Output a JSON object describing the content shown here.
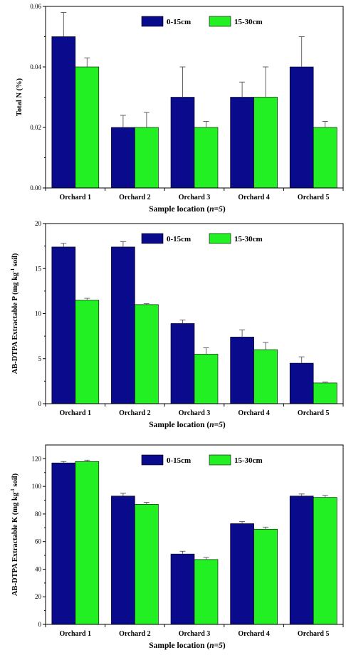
{
  "colors": {
    "series1": "#0a0a8c",
    "series2": "#22f022",
    "axis": "#000000",
    "error": "#555555"
  },
  "chart_data": [
    {
      "type": "bar",
      "categories": [
        "Orchard 1",
        "Orchard 2",
        "Orchard 3",
        "Orchard 4",
        "Orchard 5"
      ],
      "series": [
        {
          "name": "0-15cm",
          "values": [
            0.05,
            0.02,
            0.03,
            0.03,
            0.04
          ],
          "errors": [
            0.008,
            0.004,
            0.01,
            0.005,
            0.01
          ]
        },
        {
          "name": "15-30cm",
          "values": [
            0.04,
            0.02,
            0.02,
            0.03,
            0.02
          ],
          "errors": [
            0.003,
            0.005,
            0.002,
            0.01,
            0.002
          ]
        }
      ],
      "xlabel_pre": "Sample location (",
      "xlabel_em": "n=5",
      "xlabel_post": ")",
      "ylabel": "Total N (%)",
      "ylim": [
        0,
        0.06
      ],
      "yticks": [
        "0.00",
        "0.02",
        "0.04",
        "0.06"
      ],
      "legend": "top-right"
    },
    {
      "type": "bar",
      "categories": [
        "Orchard 1",
        "Orchard 2",
        "Orchard 3",
        "Orchard 4",
        "Orchard 5"
      ],
      "series": [
        {
          "name": "0-15cm",
          "values": [
            17.4,
            17.4,
            8.9,
            7.4,
            4.5
          ],
          "errors": [
            0.4,
            0.6,
            0.4,
            0.8,
            0.7
          ]
        },
        {
          "name": "15-30cm",
          "values": [
            11.5,
            11.0,
            5.5,
            6.0,
            2.3
          ],
          "errors": [
            0.2,
            0.1,
            0.7,
            0.8,
            0.1
          ]
        }
      ],
      "xlabel_pre": "Sample location (",
      "xlabel_em": "n=5",
      "xlabel_post": ")",
      "ylabel_pre": "AB-DTPA Extractable P (mg kg",
      "ylabel_sup": "-1",
      "ylabel_post": " soil)",
      "ylim": [
        0,
        20
      ],
      "yticks": [
        "0",
        "5",
        "10",
        "15",
        "20"
      ],
      "legend": "top-right"
    },
    {
      "type": "bar",
      "categories": [
        "Orchard 1",
        "Orchard 2",
        "Orchard 3",
        "Orchard 4",
        "Orchard 5"
      ],
      "series": [
        {
          "name": "0-15cm",
          "values": [
            117,
            93,
            51,
            73,
            93
          ],
          "errors": [
            1,
            2,
            2,
            1.5,
            1.5
          ]
        },
        {
          "name": "15-30cm",
          "values": [
            118,
            87,
            47,
            69,
            92
          ],
          "errors": [
            1,
            1.5,
            1.5,
            1.5,
            1.5
          ]
        }
      ],
      "xlabel_pre": "Sample location (",
      "xlabel_em": "n=5",
      "xlabel_post": ")",
      "ylabel_pre": "AB-DTPA Extractable K (mg kg",
      "ylabel_sup": "-1",
      "ylabel_post": " soil)",
      "ylim": [
        0,
        130
      ],
      "yticks": [
        "0",
        "20",
        "40",
        "60",
        "80",
        "100",
        "120"
      ],
      "legend": "top-right"
    }
  ]
}
